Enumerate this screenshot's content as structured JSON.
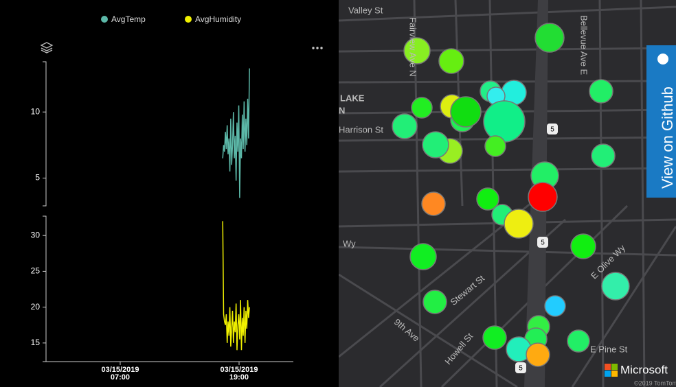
{
  "chart_data": [
    {
      "type": "line",
      "x": [
        17.35,
        17.44,
        17.53,
        17.62,
        17.71,
        17.8,
        17.89,
        17.98,
        18.07,
        18.16,
        18.25,
        18.34,
        18.43,
        18.52,
        18.61,
        18.7,
        18.79,
        18.88,
        18.97,
        19.06,
        19.15,
        19.24,
        19.33,
        19.42,
        19.51,
        19.6,
        19.69,
        19.78,
        19.87,
        19.96,
        20.05
      ],
      "series": [
        {
          "name": "AvgTemp",
          "color": "#5cb8a8",
          "values": [
            6.5,
            7.5,
            7,
            8.5,
            7.2,
            9,
            6.8,
            8,
            5.5,
            9.5,
            6,
            7.5,
            10,
            6.5,
            8.2,
            4.8,
            9.2,
            7,
            10.5,
            3.5,
            8,
            6.5,
            9.8,
            7.2,
            10.8,
            7,
            9.5,
            7.5,
            11,
            8,
            13.3
          ]
        }
      ],
      "xlim": [
        -0.49,
        24.48
      ],
      "ylim": [
        2.9,
        13.8
      ],
      "yticks": [
        5,
        10
      ]
    },
    {
      "type": "line",
      "x": [
        17.35,
        17.44,
        17.53,
        17.62,
        17.71,
        17.8,
        17.89,
        17.98,
        18.07,
        18.16,
        18.25,
        18.34,
        18.43,
        18.52,
        18.61,
        18.7,
        18.79,
        18.88,
        18.97,
        19.06,
        19.15,
        19.24,
        19.33,
        19.42,
        19.51,
        19.6,
        19.69,
        19.78,
        19.87,
        19.96,
        20.05
      ],
      "series": [
        {
          "name": "AvgHumidity",
          "color": "#f0f000",
          "values": [
            32,
            19,
            18,
            17.5,
            19,
            15,
            18,
            16,
            20,
            14.5,
            17,
            19.5,
            15,
            18,
            16.5,
            20.5,
            14,
            17.5,
            19,
            15.5,
            21,
            14,
            18.5,
            16,
            20,
            15,
            19.5,
            17,
            21,
            18.5,
            20
          ]
        }
      ],
      "xlim": [
        -0.49,
        24.48
      ],
      "ylim": [
        12.4,
        32.7
      ],
      "yticks": [
        15,
        20,
        25,
        30
      ],
      "xticks": [
        {
          "value": 7,
          "label": "03/15/2019 07:00"
        },
        {
          "value": 19,
          "label": "03/15/2019 19:00"
        }
      ]
    }
  ],
  "map": {
    "streets": [
      "Valley St",
      "Fairview Ave N",
      "Bellevue Ave E",
      "LAKE",
      "N",
      "Harrison St",
      "Wy",
      "Stewart St",
      "E Olive Wy",
      "9th Ave",
      "Howell St",
      "E Pine St"
    ],
    "shields": [
      "5",
      "5",
      "5"
    ],
    "github_button": "View on Github",
    "brand": "Microsoft",
    "copyright": "©2019 TomTom"
  }
}
